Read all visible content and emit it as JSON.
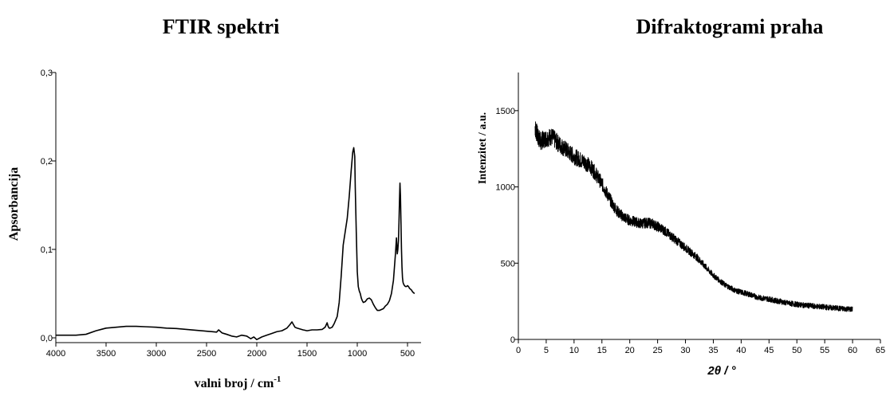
{
  "chart_data": [
    {
      "type": "line",
      "title": "FTIR spektri",
      "xlabel": "valni broj / cm",
      "xlabel_sup": "-1",
      "ylabel": "Apsorbancija",
      "xlim": [
        4000,
        420
      ],
      "ylim": [
        -0.006,
        0.3
      ],
      "x_ticks": [
        4000,
        3500,
        3000,
        2500,
        2000,
        1500,
        1000,
        500
      ],
      "x_tick_labels": [
        "4000",
        "3500",
        "3000",
        "2500",
        "2000",
        "1500",
        "1000",
        "500"
      ],
      "y_ticks": [
        0.0,
        0.1,
        0.2,
        0.3
      ],
      "y_tick_labels": [
        "0,0",
        "0,1",
        "0,2",
        "0,3"
      ],
      "series": [
        {
          "x": [
            4000,
            3800,
            3700,
            3600,
            3500,
            3400,
            3300,
            3200,
            3100,
            3000,
            2900,
            2800,
            2700,
            2600,
            2500,
            2450,
            2400,
            2380,
            2360,
            2345,
            2330,
            2300,
            2250,
            2200,
            2150,
            2100,
            2060,
            2030,
            2000,
            1950,
            1900,
            1850,
            1800,
            1750,
            1700,
            1670,
            1650,
            1635,
            1620,
            1600,
            1570,
            1540,
            1500,
            1450,
            1400,
            1350,
            1320,
            1300,
            1290,
            1280,
            1270,
            1250,
            1230,
            1200,
            1180,
            1160,
            1140,
            1120,
            1100,
            1080,
            1060,
            1045,
            1035,
            1025,
            1020,
            1010,
            1000,
            990,
            980,
            970,
            960,
            950,
            940,
            920,
            900,
            880,
            860,
            840,
            820,
            800,
            780,
            760,
            740,
            720,
            700,
            680,
            660,
            640,
            630,
            620,
            610,
            602,
            596,
            590,
            585,
            580,
            575,
            570,
            565,
            560,
            555,
            550,
            545,
            540,
            530,
            520,
            510,
            500,
            490,
            480,
            470,
            460,
            450,
            440,
            430
          ],
          "y": [
            0.003,
            0.003,
            0.004,
            0.008,
            0.011,
            0.012,
            0.013,
            0.013,
            0.0125,
            0.012,
            0.011,
            0.0105,
            0.0095,
            0.0085,
            0.0075,
            0.007,
            0.0065,
            0.009,
            0.007,
            0.0055,
            0.005,
            0.004,
            0.002,
            0.001,
            0.003,
            0.002,
            -0.001,
            0.001,
            -0.002,
            0.001,
            0.003,
            0.005,
            0.007,
            0.008,
            0.011,
            0.015,
            0.018,
            0.015,
            0.012,
            0.011,
            0.01,
            0.009,
            0.008,
            0.009,
            0.009,
            0.0095,
            0.012,
            0.017,
            0.013,
            0.011,
            0.011,
            0.012,
            0.016,
            0.024,
            0.04,
            0.07,
            0.105,
            0.12,
            0.135,
            0.16,
            0.19,
            0.21,
            0.215,
            0.205,
            0.17,
            0.12,
            0.075,
            0.058,
            0.053,
            0.05,
            0.045,
            0.042,
            0.04,
            0.041,
            0.044,
            0.045,
            0.043,
            0.038,
            0.034,
            0.031,
            0.031,
            0.032,
            0.033,
            0.036,
            0.038,
            0.042,
            0.05,
            0.065,
            0.08,
            0.095,
            0.113,
            0.095,
            0.1,
            0.11,
            0.13,
            0.155,
            0.175,
            0.16,
            0.13,
            0.1,
            0.08,
            0.068,
            0.063,
            0.061,
            0.059,
            0.058,
            0.058,
            0.059,
            0.058,
            0.056,
            0.055,
            0.054,
            0.052,
            0.051,
            0.05
          ]
        }
      ]
    },
    {
      "type": "line",
      "title": "Difraktogrami praha",
      "xlabel": "2θ / °",
      "ylabel": "Intenzitet / a.u.",
      "xlim": [
        0,
        65
      ],
      "ylim": [
        0,
        1750
      ],
      "x_ticks": [
        0,
        5,
        10,
        15,
        20,
        25,
        30,
        35,
        40,
        45,
        50,
        55,
        60,
        65
      ],
      "x_tick_labels": [
        "0",
        "5",
        "10",
        "15",
        "20",
        "25",
        "30",
        "35",
        "40",
        "45",
        "50",
        "55",
        "60",
        "65"
      ],
      "y_ticks": [
        0,
        500,
        1000,
        1500
      ],
      "y_tick_labels": [
        "0",
        "500",
        "1000",
        "1500"
      ],
      "series": [
        {
          "x": [
            3,
            3.5,
            4,
            5,
            6,
            7,
            8,
            9,
            10,
            11,
            12,
            13,
            14,
            15,
            16,
            17,
            18,
            19,
            20,
            21,
            22,
            23,
            24,
            25,
            26,
            27,
            28,
            29,
            30,
            31,
            32,
            33,
            34,
            35,
            36,
            37,
            38,
            39,
            40,
            41,
            42,
            43,
            44,
            45,
            46,
            47,
            48,
            49,
            50,
            51,
            52,
            53,
            54,
            55,
            56,
            57,
            58,
            59,
            60
          ],
          "y": [
            1390,
            1330,
            1300,
            1320,
            1330,
            1290,
            1260,
            1230,
            1200,
            1180,
            1160,
            1130,
            1080,
            1020,
            950,
            880,
            830,
            800,
            780,
            770,
            760,
            765,
            760,
            740,
            720,
            690,
            660,
            630,
            600,
            570,
            540,
            500,
            460,
            420,
            390,
            360,
            340,
            320,
            310,
            300,
            290,
            275,
            270,
            265,
            255,
            250,
            240,
            235,
            230,
            225,
            222,
            218,
            215,
            212,
            208,
            205,
            202,
            200,
            198
          ]
        }
      ]
    }
  ]
}
